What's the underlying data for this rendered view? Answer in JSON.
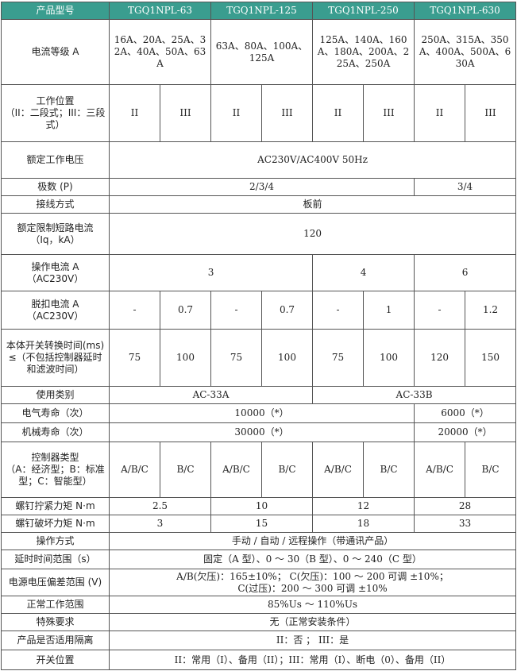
{
  "header": [
    "产品型号",
    "TGQ1NPL-63",
    "TGQ1NPL-125",
    "TGQ1NPL-250",
    "TGQ1NPL-630"
  ],
  "rows": [
    {
      "label": [
        "电流等级 A"
      ],
      "cells": [
        "16A、20A、25A、32A、40A、50A、63A",
        "63A、80A、100A、125A",
        "125A、140A、160A、180A、200A、225A、250A",
        "250A、315A、350A、400A、500A、630A"
      ]
    },
    {
      "label": [
        "工作位置",
        "（II：二段式；III：三段式）"
      ],
      "cells": [
        "II",
        "III",
        "II",
        "III",
        "II",
        "III",
        "II",
        "III"
      ]
    },
    {
      "label": [
        "额定工作电压"
      ],
      "cells": [
        "AC230V/AC400V 50Hz"
      ]
    },
    {
      "label": [
        "极数 (P)"
      ],
      "cells": [
        "2/3/4",
        "3/4"
      ]
    },
    {
      "label": [
        "接线方式"
      ],
      "cells": [
        "板前"
      ]
    },
    {
      "label": [
        "额定限制短路电流",
        "（Iq，kA）"
      ],
      "cells": [
        "120"
      ]
    },
    {
      "label": [
        "操作电流 A",
        "（AC230V）"
      ],
      "cells": [
        "3",
        "4",
        "6"
      ]
    },
    {
      "label": [
        "脱扣电流 A",
        "（AC230V）"
      ],
      "cells": [
        "-",
        "0.7",
        "-",
        "0.7",
        "-",
        "1",
        "-",
        "1.2"
      ]
    },
    {
      "label": [
        "本体开关转换时间(ms)≤（不包括控制器延时和滤波时间）"
      ],
      "cells": [
        "75",
        "100",
        "75",
        "100",
        "75",
        "100",
        "120",
        "150"
      ]
    },
    {
      "label": [
        "使用类别"
      ],
      "cells": [
        "AC-33A",
        "AC-33B"
      ]
    },
    {
      "label": [
        "电气寿命（次）"
      ],
      "cells": [
        "10000（*）",
        "6000（*）"
      ]
    },
    {
      "label": [
        "机械寿命（次）"
      ],
      "cells": [
        "30000（*）",
        "20000（*）"
      ]
    },
    {
      "label": [
        "控制器类型",
        "（A：经济型；B：标准型；C：智能型）"
      ],
      "cells": [
        "A/B/C",
        "B/C",
        "A/B/C",
        "B/C",
        "A/B/C",
        "B/C",
        "A/B/C",
        "B/C"
      ]
    },
    {
      "label": [
        "螺钉拧紧力矩 N·m"
      ],
      "cells": [
        "2.5",
        "10",
        "12",
        "28"
      ]
    },
    {
      "label": [
        "螺钉破坏力矩 N·m"
      ],
      "cells": [
        "3",
        "15",
        "18",
        "33"
      ]
    },
    {
      "label": [
        "操作方式"
      ],
      "cells": [
        "手动 / 自动 / 远程操作（带通讯产品）"
      ]
    },
    {
      "label": [
        "延时时间范围（s）"
      ],
      "cells": [
        "固定（A 型）、0 ～ 30（B 型）、0 ～ 240（C 型）"
      ]
    },
    {
      "label": [
        "电源电压偏差范围 (V)"
      ],
      "cells": [
        [
          "A/B(欠压)：165±10%； C(欠压)：100 ～ 200 可调 ±10%；",
          "C(过压)：200 ～ 300 可调 ±10%"
        ]
      ]
    },
    {
      "label": [
        "正常工作范围"
      ],
      "cells": [
        "85%Us ～ 110%Us"
      ]
    },
    {
      "label": [
        "特殊要求"
      ],
      "cells": [
        "无（正常安装条件）"
      ]
    },
    {
      "label": [
        "产品是否适用隔离"
      ],
      "cells": [
        "II：否 ； III：是"
      ]
    },
    {
      "label": [
        "开关位置"
      ],
      "cells": [
        "II：常用（I）、备用（II）；III：常用（I）、断电（0）、备用（II）"
      ]
    }
  ]
}
